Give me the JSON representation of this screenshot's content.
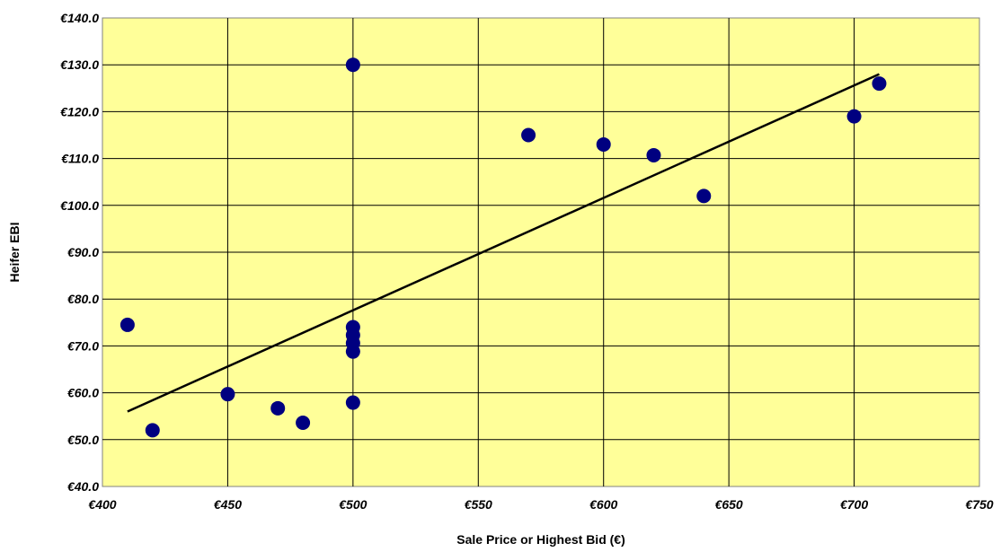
{
  "chart_data": {
    "type": "scatter",
    "title": "",
    "xlabel": "Sale Price or Highest Bid (€)",
    "ylabel": "Heifer EBI",
    "xlim": [
      400,
      750
    ],
    "ylim": [
      40,
      140
    ],
    "x_ticks": [
      400,
      450,
      500,
      550,
      600,
      650,
      700,
      750
    ],
    "y_ticks": [
      40,
      50,
      60,
      70,
      80,
      90,
      100,
      110,
      120,
      130,
      140
    ],
    "x_tick_labels": [
      "€400",
      "€450",
      "€500",
      "€550",
      "€600",
      "€650",
      "€700",
      "€750"
    ],
    "y_tick_labels": [
      "€40.0",
      "€50.0",
      "€60.0",
      "€70.0",
      "€80.0",
      "€90.0",
      "€100.0",
      "€110.0",
      "€120.0",
      "€130.0",
      "€140.0"
    ],
    "grid": true,
    "plot_background": "#ffff99",
    "point_color": "#000080",
    "trend_color": "#000000",
    "points": [
      {
        "x": 410,
        "y": 74.5
      },
      {
        "x": 420,
        "y": 52
      },
      {
        "x": 450,
        "y": 59.7
      },
      {
        "x": 470,
        "y": 56.7
      },
      {
        "x": 480,
        "y": 53.6
      },
      {
        "x": 500,
        "y": 130
      },
      {
        "x": 500,
        "y": 74
      },
      {
        "x": 500,
        "y": 72.3
      },
      {
        "x": 500,
        "y": 70.6
      },
      {
        "x": 500,
        "y": 68.8
      },
      {
        "x": 500,
        "y": 57.9
      },
      {
        "x": 570,
        "y": 115
      },
      {
        "x": 600,
        "y": 113
      },
      {
        "x": 620,
        "y": 110.7
      },
      {
        "x": 640,
        "y": 102
      },
      {
        "x": 700,
        "y": 119
      },
      {
        "x": 710,
        "y": 126
      }
    ],
    "trendline": {
      "x1": 410,
      "y1": 56,
      "x2": 710,
      "y2": 128
    }
  }
}
